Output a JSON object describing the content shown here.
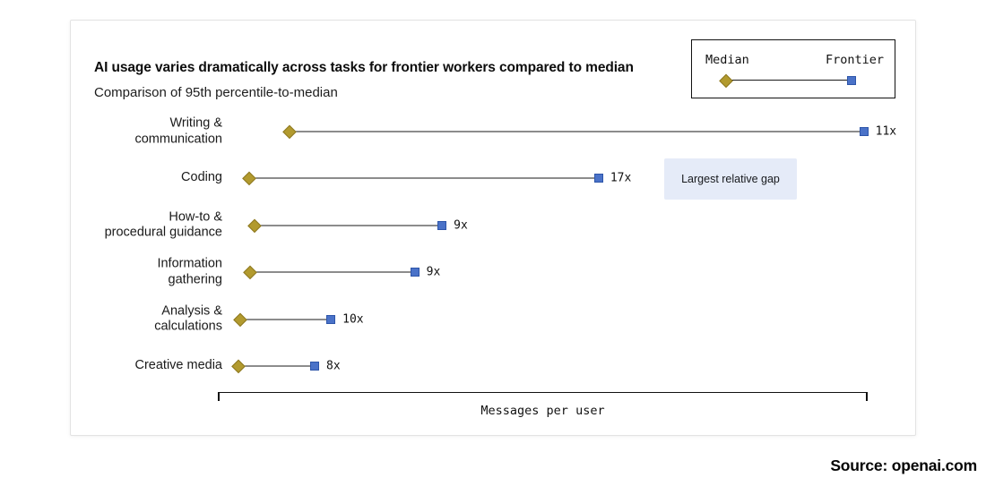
{
  "card": {
    "title": "AI usage varies dramatically across tasks for frontier workers compared to median",
    "subtitle": "Comparison of 95th percentile-to-median",
    "annotation_label": "Largest relative gap",
    "axis_label": "Messages per user",
    "legend": {
      "median_label": "Median",
      "frontier_label": "Frontier"
    }
  },
  "source": {
    "label": "Source: openai.com"
  },
  "colors": {
    "median_fill": "#b29a2e",
    "median_stroke": "#8c7720",
    "frontier_fill": "#4a72c8",
    "frontier_stroke": "#2d55a9",
    "connector": "#1a1a1a",
    "annotation_bg": "#e5ebf8",
    "card_border": "#e3e3e3"
  },
  "chart_data": {
    "type": "dumbbell",
    "title": "AI usage varies dramatically across tasks for frontier workers compared to median",
    "subtitle": "Comparison of 95th percentile-to-median",
    "xlabel": "Messages per user",
    "x_axis": {
      "tick_labels": "none",
      "style": "bracket with downward end caps"
    },
    "legend_position": "top-right",
    "legend_entries": [
      "Median",
      "Frontier"
    ],
    "categories": [
      "Writing &\ncommunication",
      "Coding",
      "How-to &\nprocedural guidance",
      "Information\ngathering",
      "Analysis &\ncalculations",
      "Creative media"
    ],
    "gap_multiplier_labels": [
      "11x",
      "17x",
      "9x",
      "9x",
      "10x",
      "8x"
    ],
    "gap_multipliers": [
      11,
      17,
      9,
      9,
      10,
      8
    ],
    "series": [
      {
        "name": "Median",
        "marker": "gold-diamond",
        "axis_position_pct": [
          11.0,
          4.8,
          5.7,
          5.0,
          3.4,
          3.2
        ]
      },
      {
        "name": "Frontier",
        "marker": "blue-square",
        "axis_position_pct": [
          99.4,
          58.6,
          34.5,
          30.3,
          17.4,
          14.9
        ]
      }
    ],
    "annotation": {
      "text": "Largest relative gap",
      "attached_to": "Coding"
    }
  }
}
